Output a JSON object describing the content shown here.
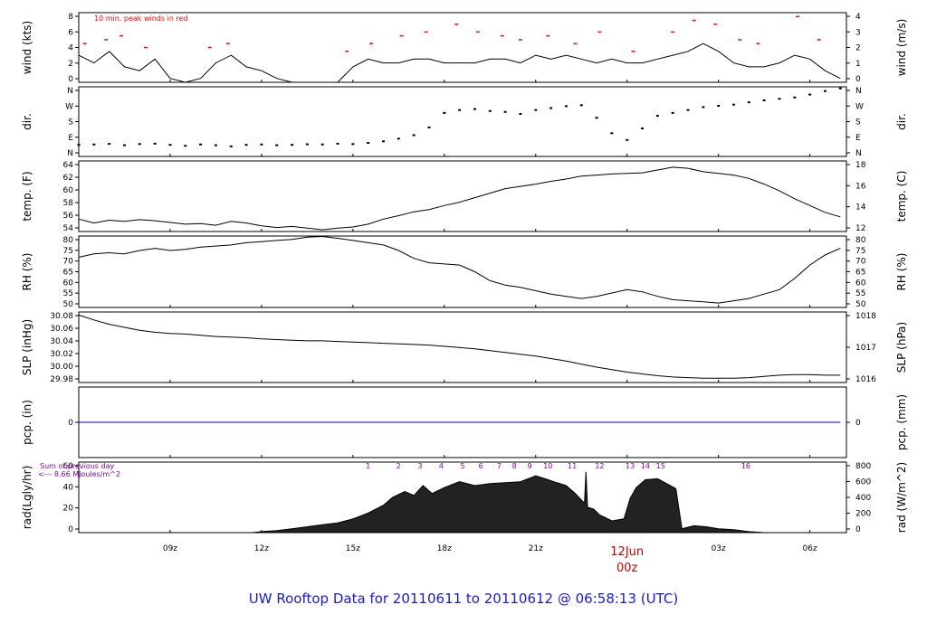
{
  "footer_title": "UW Rooftop Data for 20110611  to  20110612 @ 06:58:13  (UTC)",
  "colors": {
    "line": "#000000",
    "peak": "#ff0000",
    "pcp": "#0000cc",
    "note": "#8800aa",
    "date": "#cc0000",
    "footer": "#1a1acc"
  },
  "chart_data": [
    {
      "id": "wind",
      "type": "line",
      "ylabel_left": "wind (kts)",
      "ylabel_right": "wind (m/s)",
      "ylim": [
        0,
        9
      ],
      "left_ticks": [
        "0",
        "2",
        "4",
        "6",
        "8"
      ],
      "right_ticks": [
        "0",
        "1",
        "2",
        "3",
        "4"
      ],
      "annotation": "10 min. peak winds in red",
      "series": [
        {
          "x": [
            6.0,
            6.5,
            7.0,
            7.5,
            8.0,
            8.5,
            9.0,
            9.5,
            10.0,
            10.5,
            11.0,
            11.5,
            12.0,
            12.5,
            13.0,
            13.5,
            14.0,
            14.5,
            15.0,
            15.5,
            16.0,
            16.5,
            17.0,
            17.5,
            18.0,
            18.5,
            19.0,
            19.5,
            20.0,
            20.5,
            21.0,
            21.5,
            22.0,
            22.5,
            23.0,
            23.5,
            24.0,
            24.5,
            25.0,
            25.5,
            26.0,
            26.5,
            27.0,
            27.5,
            28.0,
            28.5,
            29.0,
            29.5,
            30.0,
            30.5,
            31.0
          ],
          "values": [
            3.5,
            2.5,
            4.0,
            2.0,
            1.5,
            3.0,
            0.5,
            0.0,
            0.5,
            2.5,
            3.5,
            2.0,
            1.5,
            0.5,
            0.0,
            0.0,
            0.0,
            0.0,
            2.0,
            3.0,
            2.5,
            2.5,
            3.0,
            3.0,
            2.5,
            2.5,
            2.5,
            3.0,
            3.0,
            2.5,
            3.5,
            3.0,
            3.5,
            3.0,
            2.5,
            3.0,
            2.5,
            2.5,
            3.0,
            3.5,
            4.0,
            5.0,
            4.0,
            2.5,
            2.0,
            2.0,
            2.5,
            3.5,
            3.0,
            1.5,
            0.5
          ]
        },
        {
          "name": "peak",
          "x": [
            6.2,
            6.9,
            7.4,
            8.2,
            10.3,
            10.9,
            14.8,
            15.6,
            16.6,
            17.4,
            18.4,
            19.1,
            19.9,
            20.5,
            21.4,
            22.3,
            23.1,
            24.2,
            25.5,
            26.2,
            26.9,
            27.7,
            28.3,
            29.6,
            30.3
          ],
          "values": [
            5.0,
            5.5,
            6.0,
            4.5,
            4.5,
            5.0,
            4.0,
            5.0,
            6.0,
            6.5,
            7.5,
            6.5,
            6.0,
            5.5,
            6.0,
            5.0,
            6.5,
            4.0,
            6.5,
            8.0,
            7.5,
            5.5,
            5.0,
            8.5,
            5.5
          ]
        }
      ]
    },
    {
      "id": "dir",
      "type": "scatter",
      "ylabel_left": "dir.",
      "ylabel_right": "dir.",
      "ylim": [
        0,
        360
      ],
      "left_ticks": [
        "N",
        "E",
        "S",
        "W",
        "N"
      ],
      "right_ticks": [
        "N",
        "E",
        "S",
        "W",
        "N"
      ],
      "series": [
        {
          "x": [
            6.0,
            6.5,
            7.0,
            7.5,
            8.0,
            8.5,
            9.0,
            9.5,
            10.0,
            10.5,
            11.0,
            11.5,
            12.0,
            12.5,
            13.0,
            13.5,
            14.0,
            14.5,
            15.0,
            15.5,
            16.0,
            16.5,
            17.0,
            17.5,
            18.0,
            18.5,
            19.0,
            19.5,
            20.0,
            20.5,
            21.0,
            21.5,
            22.0,
            22.5,
            23.0,
            23.5,
            24.0,
            24.5,
            25.0,
            25.5,
            26.0,
            26.5,
            27.0,
            27.5,
            28.0,
            28.5,
            29.0,
            29.5,
            30.0,
            30.5,
            31.0
          ],
          "values": [
            60,
            62,
            65,
            58,
            64,
            66,
            60,
            55,
            62,
            58,
            52,
            60,
            62,
            58,
            60,
            63,
            62,
            66,
            64,
            70,
            78,
            92,
            110,
            150,
            225,
            240,
            245,
            235,
            230,
            220,
            240,
            250,
            260,
            265,
            200,
            120,
            85,
            145,
            210,
            225,
            240,
            255,
            262,
            268,
            280,
            290,
            298,
            305,
            320,
            338,
            352
          ]
        }
      ]
    },
    {
      "id": "temp",
      "type": "line",
      "ylabel_left": "temp. (F)",
      "ylabel_right": "temp. (C)",
      "ylim": [
        53,
        65.5
      ],
      "left_ticks": [
        "54",
        "56",
        "58",
        "60",
        "62",
        "64"
      ],
      "right_ticks": [
        "12",
        "14",
        "16",
        "18"
      ],
      "series": [
        {
          "x": [
            6.0,
            6.5,
            7.0,
            7.5,
            8.0,
            8.5,
            9.0,
            9.5,
            10.0,
            10.5,
            11.0,
            11.5,
            12.0,
            12.5,
            13.0,
            13.5,
            14.0,
            14.5,
            15.0,
            15.5,
            16.0,
            16.5,
            17.0,
            17.5,
            18.0,
            18.5,
            19.0,
            19.5,
            20.0,
            20.5,
            21.0,
            21.5,
            22.0,
            22.5,
            23.0,
            23.5,
            24.0,
            24.5,
            25.0,
            25.5,
            26.0,
            26.5,
            27.0,
            27.5,
            28.0,
            28.5,
            29.0,
            29.5,
            30.0,
            30.5,
            31.0
          ],
          "values": [
            55.2,
            54.5,
            55.0,
            54.8,
            55.1,
            54.9,
            54.6,
            54.3,
            54.4,
            54.1,
            54.8,
            54.5,
            54.0,
            53.7,
            53.9,
            53.6,
            53.3,
            53.6,
            53.8,
            54.3,
            55.2,
            55.8,
            56.5,
            56.9,
            57.6,
            58.2,
            59.0,
            59.8,
            60.6,
            61.0,
            61.4,
            61.9,
            62.3,
            62.8,
            63.0,
            63.2,
            63.3,
            63.4,
            63.9,
            64.4,
            64.2,
            63.6,
            63.3,
            63.0,
            62.4,
            61.4,
            60.2,
            58.8,
            57.6,
            56.4,
            55.6
          ]
        }
      ]
    },
    {
      "id": "rh",
      "type": "line",
      "ylabel_left": "RH (%)",
      "ylabel_right": "RH (%)",
      "ylim": [
        49,
        81
      ],
      "left_ticks": [
        "50",
        "55",
        "60",
        "65",
        "70",
        "75",
        "80"
      ],
      "right_ticks": [
        "50",
        "55",
        "60",
        "65",
        "70",
        "75",
        "80"
      ],
      "series": [
        {
          "x": [
            6.0,
            6.5,
            7.0,
            7.5,
            8.0,
            8.5,
            9.0,
            9.5,
            10.0,
            10.5,
            11.0,
            11.5,
            12.0,
            12.5,
            13.0,
            13.5,
            14.0,
            14.5,
            15.0,
            15.5,
            16.0,
            16.5,
            17.0,
            17.5,
            18.0,
            18.5,
            19.0,
            19.5,
            20.0,
            20.5,
            21.0,
            21.5,
            22.0,
            22.5,
            23.0,
            23.5,
            24.0,
            24.5,
            25.0,
            25.5,
            26.0,
            26.5,
            27.0,
            27.5,
            28.0,
            28.5,
            29.0,
            29.5,
            30.0,
            30.5,
            31.0
          ],
          "values": [
            71.5,
            73.0,
            73.5,
            73.0,
            74.5,
            75.5,
            74.5,
            75.0,
            76.0,
            76.5,
            77.0,
            78.0,
            78.5,
            79.0,
            79.5,
            80.5,
            80.8,
            80.0,
            79.0,
            78.0,
            77.0,
            74.5,
            71.0,
            69.0,
            68.5,
            68.0,
            65.0,
            61.0,
            59.0,
            58.0,
            56.5,
            55.0,
            54.0,
            53.0,
            54.0,
            55.5,
            57.0,
            56.0,
            54.0,
            52.5,
            52.0,
            51.5,
            51.0,
            52.0,
            53.0,
            55.0,
            57.0,
            62.0,
            68.0,
            72.5,
            75.5
          ]
        }
      ]
    },
    {
      "id": "slp",
      "type": "line",
      "ylabel_left": "SLP (inHg)",
      "ylabel_right": "SLP (hPa)",
      "ylim": [
        29.975,
        30.09
      ],
      "left_ticks": [
        "29.98",
        "30.00",
        "30.02",
        "30.04",
        "30.06",
        "30.08"
      ],
      "right_ticks": [
        "1016",
        "1017",
        "1018"
      ],
      "series": [
        {
          "x": [
            6.0,
            6.5,
            7.0,
            7.5,
            8.0,
            8.5,
            9.0,
            9.5,
            10.0,
            10.5,
            11.0,
            11.5,
            12.0,
            12.5,
            13.0,
            13.5,
            14.0,
            14.5,
            15.0,
            15.5,
            16.0,
            16.5,
            17.0,
            17.5,
            18.0,
            18.5,
            19.0,
            19.5,
            20.0,
            20.5,
            21.0,
            21.5,
            22.0,
            22.5,
            23.0,
            23.5,
            24.0,
            24.5,
            25.0,
            25.5,
            26.0,
            26.5,
            27.0,
            27.5,
            28.0,
            28.5,
            29.0,
            29.5,
            30.0,
            30.5,
            31.0
          ],
          "values": [
            30.085,
            30.077,
            30.07,
            30.065,
            30.06,
            30.057,
            30.055,
            30.054,
            30.052,
            30.05,
            30.049,
            30.048,
            30.046,
            30.045,
            30.044,
            30.043,
            30.043,
            30.042,
            30.041,
            30.04,
            30.039,
            30.038,
            30.037,
            30.036,
            30.034,
            30.032,
            30.03,
            30.027,
            30.024,
            30.021,
            30.018,
            30.014,
            30.01,
            30.005,
            30.0,
            29.996,
            29.992,
            29.989,
            29.986,
            29.984,
            29.983,
            29.982,
            29.982,
            29.982,
            29.983,
            29.985,
            29.987,
            29.988,
            29.988,
            29.987,
            29.987
          ]
        }
      ]
    },
    {
      "id": "pcp",
      "type": "line",
      "ylabel_left": "pcp. (in)",
      "ylabel_right": "pcp. (mm)",
      "ylim": [
        -1,
        1
      ],
      "left_ticks": [
        "0"
      ],
      "right_ticks": [
        "0"
      ],
      "series": [
        {
          "x": [
            6.0,
            31.0
          ],
          "values": [
            0,
            0
          ]
        }
      ]
    },
    {
      "id": "rad",
      "type": "area",
      "ylabel_left": "rad(Lgly/hr)",
      "ylabel_right": "rad (W/m^2)",
      "ylim": [
        0,
        72
      ],
      "left_ticks": [
        "0",
        "20",
        "40",
        "60"
      ],
      "right_ticks": [
        "0",
        "200",
        "400",
        "600",
        "800"
      ],
      "note_lines": [
        "Sum of previous day",
        "<--- 8.66 MJoules/m^2"
      ],
      "hour_labels": [
        "1",
        "2",
        "3",
        "4",
        "5",
        "6",
        "7",
        "8",
        "9",
        "10",
        "11",
        "12",
        "13",
        "14",
        "15",
        "16"
      ],
      "hour_label_x": [
        15.5,
        16.5,
        17.2,
        17.9,
        18.6,
        19.2,
        19.8,
        20.3,
        20.8,
        21.4,
        22.2,
        23.1,
        24.1,
        24.6,
        25.1,
        27.9
      ],
      "series": [
        {
          "x": [
            11.7,
            12.0,
            12.5,
            13.0,
            13.5,
            14.0,
            14.5,
            15.0,
            15.5,
            16.0,
            16.3,
            16.7,
            17.0,
            17.3,
            17.6,
            18.0,
            18.5,
            19.0,
            19.5,
            20.0,
            20.5,
            21.0,
            21.3,
            21.6,
            22.0,
            22.3,
            22.6,
            22.65,
            22.7,
            22.9,
            23.1,
            23.5,
            23.9,
            24.1,
            24.3,
            24.6,
            25.0,
            25.3,
            25.6,
            25.8,
            26.2,
            26.6,
            27.0,
            27.5,
            28.0,
            28.5,
            29.0
          ],
          "values": [
            0,
            1,
            2,
            4,
            6,
            8,
            10,
            14,
            20,
            28,
            36,
            42,
            38,
            48,
            40,
            46,
            52,
            48,
            50,
            51,
            52,
            58,
            55,
            52,
            48,
            40,
            30,
            62,
            26,
            24,
            18,
            12,
            14,
            35,
            46,
            54,
            55,
            50,
            45,
            4,
            7,
            6,
            4,
            3,
            1,
            0,
            0
          ]
        }
      ]
    }
  ],
  "x_axis": {
    "range": [
      6.0,
      31.2
    ],
    "ticks": [
      {
        "x": 9,
        "label": "09z"
      },
      {
        "x": 12,
        "label": "12z"
      },
      {
        "x": 15,
        "label": "15z"
      },
      {
        "x": 18,
        "label": "18z"
      },
      {
        "x": 21,
        "label": "21z"
      },
      {
        "x": 24,
        "label": ""
      },
      {
        "x": 27,
        "label": "03z"
      },
      {
        "x": 30,
        "label": "06z"
      }
    ],
    "date_line1": "12Jun",
    "date_line2": "00z",
    "date_x": 24
  }
}
